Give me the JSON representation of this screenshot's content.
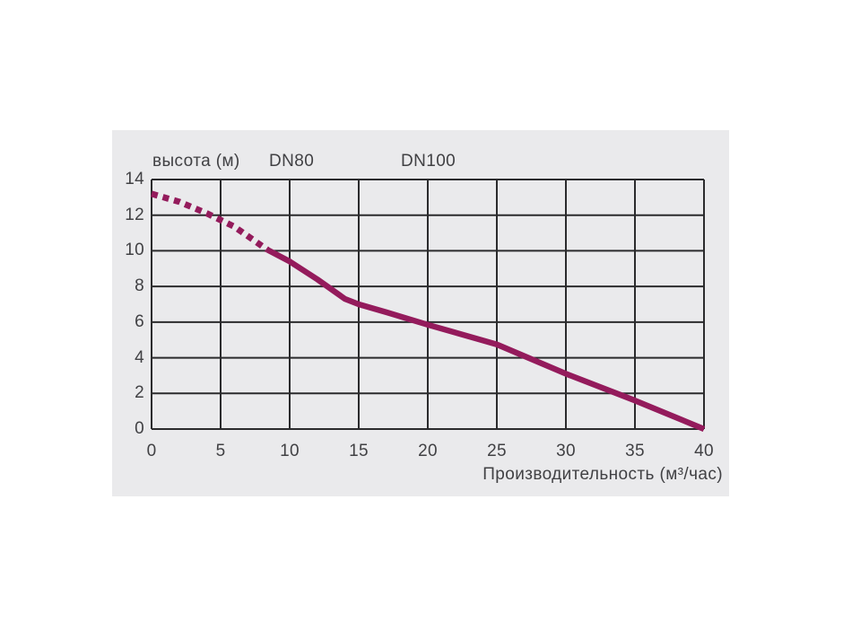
{
  "page": {
    "background": "#ffffff",
    "panel_background": "#eaeaec"
  },
  "chart_data": {
    "type": "line",
    "y_axis_title": "высота (м)",
    "xlabel": "Производительность (м³/час)",
    "annotations": [
      "DN80",
      "DN100"
    ],
    "xlim": [
      0,
      40
    ],
    "ylim": [
      0,
      14
    ],
    "x_ticks": [
      0,
      5,
      10,
      15,
      20,
      25,
      30,
      35,
      40
    ],
    "y_ticks": [
      0,
      2,
      4,
      6,
      8,
      10,
      12,
      14
    ],
    "grid": true,
    "legend_position": "none",
    "curve_color": "#941b5c",
    "grid_color": "#2b2b2d",
    "text_color": "#414144",
    "series": [
      {
        "name": "head-curve-dashed",
        "style": "dashed",
        "points": [
          [
            0,
            13.2
          ],
          [
            2,
            12.75
          ],
          [
            4,
            12.1
          ],
          [
            6,
            11.35
          ],
          [
            8.4,
            10.05
          ]
        ]
      },
      {
        "name": "head-curve-solid",
        "style": "solid",
        "points": [
          [
            8.4,
            10.05
          ],
          [
            10,
            9.4
          ],
          [
            12,
            8.4
          ],
          [
            14,
            7.3
          ],
          [
            15,
            7.0
          ],
          [
            17,
            6.55
          ],
          [
            20,
            5.85
          ],
          [
            25,
            4.75
          ],
          [
            30,
            3.1
          ],
          [
            35,
            1.6
          ],
          [
            40,
            0
          ]
        ]
      }
    ]
  }
}
